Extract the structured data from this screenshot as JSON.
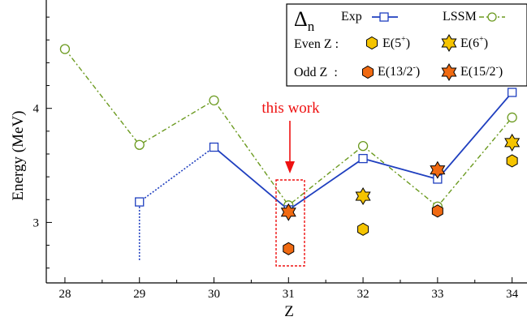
{
  "chart_data": {
    "type": "scatter",
    "xlabel": "Z",
    "ylabel": "Energy (MeV)",
    "xlim": [
      27.75,
      34.2
    ],
    "ylim": [
      2.47,
      4.95
    ],
    "x_ticks": [
      28,
      29,
      30,
      31,
      32,
      33,
      34
    ],
    "y_ticks": [
      3,
      4
    ],
    "series": [
      {
        "name": "Exp",
        "marker": "square",
        "color": "#1f3fbf",
        "line_style": "solid",
        "points": [
          [
            29,
            3.18
          ],
          [
            30,
            3.66
          ],
          [
            31,
            3.11
          ],
          [
            32,
            3.56
          ],
          [
            33,
            3.38
          ],
          [
            34,
            4.14
          ]
        ]
      },
      {
        "name": "LSSM",
        "marker": "circle",
        "color": "#6b9a1f",
        "line_style": "dashdot",
        "points": [
          [
            28,
            4.52
          ],
          [
            29,
            3.68
          ],
          [
            30,
            4.07
          ],
          [
            31,
            3.15
          ],
          [
            32,
            3.67
          ],
          [
            33,
            3.14
          ],
          [
            34,
            3.92
          ]
        ]
      },
      {
        "name": "E(5+)",
        "marker": "hexagon",
        "color": "#f5c400",
        "points": [
          [
            32,
            2.94
          ],
          [
            34,
            3.54
          ]
        ]
      },
      {
        "name": "E(6+)",
        "marker": "star6",
        "color": "#f5c400",
        "points": [
          [
            32,
            3.23
          ],
          [
            34,
            3.7
          ]
        ]
      },
      {
        "name": "E(13/2-)",
        "marker": "hexagon",
        "color": "#f06a12",
        "points": [
          [
            31,
            2.77
          ],
          [
            33,
            3.1
          ]
        ]
      },
      {
        "name": "E(15/2-)",
        "marker": "star6",
        "color": "#f06a12",
        "points": [
          [
            31,
            3.09
          ],
          [
            33,
            3.46
          ]
        ]
      }
    ],
    "exp_29_dotted_range": [
      2.67,
      3.18
    ],
    "legend": {
      "delta_main": "Δ",
      "delta_sub": "n",
      "exp_label": "Exp",
      "lssm_label": "LSSM",
      "even_label": "Even Z :",
      "odd_label": "Odd Z  :",
      "e5_label": "E(5",
      "e5_sup": "+",
      "e6_label": "E(6",
      "e6_sup": "+",
      "e13_label": "E(13/2",
      "e13_sup": "-",
      "e15_label": "E(15/2",
      "e15_sup": "-",
      "close_paren": ")",
      "placement": "top-right"
    },
    "annotation": {
      "text": "this work",
      "color": "#ee1111",
      "x": 31
    }
  }
}
